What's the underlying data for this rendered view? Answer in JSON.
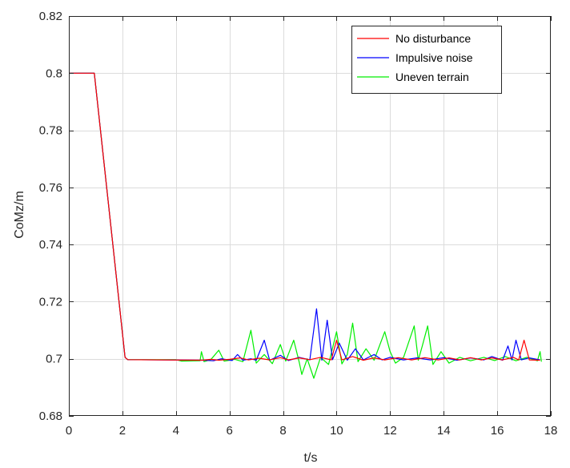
{
  "chart_data": {
    "type": "line",
    "title": "",
    "xlabel": "t/s",
    "ylabel": "CoMz/m",
    "xlim": [
      0,
      18
    ],
    "ylim": [
      0.68,
      0.82
    ],
    "xticks": [
      0,
      2,
      4,
      6,
      8,
      10,
      12,
      14,
      16,
      18
    ],
    "xtick_labels": [
      "0",
      "2",
      "4",
      "6",
      "8",
      "10",
      "12",
      "14",
      "16",
      "18"
    ],
    "yticks": [
      0.68,
      0.7,
      0.72,
      0.74,
      0.76,
      0.78,
      0.8,
      0.82
    ],
    "ytick_labels": [
      "0.68",
      "0.7",
      "0.72",
      "0.74",
      "0.76",
      "0.78",
      "0.8",
      "0.82"
    ],
    "grid": true,
    "legend_position": "top-right",
    "series": [
      {
        "name": "No disturbance",
        "color": "#ff0000",
        "points": [
          [
            0,
            0.8
          ],
          [
            0.95,
            0.8
          ],
          [
            2.1,
            0.7005
          ],
          [
            2.2,
            0.6997
          ],
          [
            5.0,
            0.6995
          ],
          [
            5.3,
            0.6998
          ],
          [
            5.6,
            0.6995
          ],
          [
            6.0,
            0.6998
          ],
          [
            6.4,
            0.7003
          ],
          [
            6.7,
            0.6996
          ],
          [
            7.1,
            0.7002
          ],
          [
            7.5,
            0.6996
          ],
          [
            7.9,
            0.7004
          ],
          [
            8.2,
            0.6996
          ],
          [
            8.6,
            0.7003
          ],
          [
            9.0,
            0.6997
          ],
          [
            9.4,
            0.7005
          ],
          [
            9.8,
            0.6996
          ],
          [
            10.0,
            0.7065
          ],
          [
            10.2,
            0.6996
          ],
          [
            10.6,
            0.7008
          ],
          [
            11.0,
            0.6995
          ],
          [
            11.4,
            0.7003
          ],
          [
            11.8,
            0.6996
          ],
          [
            12.3,
            0.7004
          ],
          [
            12.8,
            0.6996
          ],
          [
            13.3,
            0.7004
          ],
          [
            13.8,
            0.6996
          ],
          [
            14.2,
            0.7003
          ],
          [
            14.6,
            0.6996
          ],
          [
            15.0,
            0.7004
          ],
          [
            15.4,
            0.6996
          ],
          [
            15.8,
            0.7003
          ],
          [
            16.2,
            0.6996
          ],
          [
            16.6,
            0.7005
          ],
          [
            16.8,
            0.6996
          ],
          [
            17.0,
            0.7065
          ],
          [
            17.2,
            0.6996
          ],
          [
            17.6,
            0.6995
          ]
        ]
      },
      {
        "name": "Impulsive noise",
        "color": "#0000ff",
        "points": [
          [
            0,
            0.8
          ],
          [
            0.95,
            0.8
          ],
          [
            2.1,
            0.7005
          ],
          [
            2.2,
            0.6997
          ],
          [
            5.0,
            0.6995
          ],
          [
            5.4,
            0.6993
          ],
          [
            5.7,
            0.7
          ],
          [
            6.1,
            0.6994
          ],
          [
            6.3,
            0.7015
          ],
          [
            6.5,
            0.6995
          ],
          [
            6.8,
            0.7
          ],
          [
            7.0,
            0.6995
          ],
          [
            7.3,
            0.7065
          ],
          [
            7.5,
            0.6995
          ],
          [
            7.9,
            0.7012
          ],
          [
            8.2,
            0.6994
          ],
          [
            8.6,
            0.7005
          ],
          [
            9.0,
            0.6996
          ],
          [
            9.25,
            0.7175
          ],
          [
            9.45,
            0.6995
          ],
          [
            9.65,
            0.7135
          ],
          [
            9.85,
            0.6997
          ],
          [
            10.1,
            0.7055
          ],
          [
            10.4,
            0.6995
          ],
          [
            10.7,
            0.7035
          ],
          [
            11.0,
            0.6996
          ],
          [
            11.4,
            0.7015
          ],
          [
            11.7,
            0.6996
          ],
          [
            12.0,
            0.7005
          ],
          [
            12.5,
            0.6996
          ],
          [
            13.0,
            0.7003
          ],
          [
            13.5,
            0.6996
          ],
          [
            14.0,
            0.7004
          ],
          [
            14.5,
            0.6995
          ],
          [
            15.0,
            0.7003
          ],
          [
            15.5,
            0.6996
          ],
          [
            15.8,
            0.7008
          ],
          [
            16.2,
            0.6995
          ],
          [
            16.4,
            0.7045
          ],
          [
            16.55,
            0.6996
          ],
          [
            16.7,
            0.7065
          ],
          [
            16.9,
            0.6996
          ],
          [
            17.2,
            0.7003
          ],
          [
            17.6,
            0.6996
          ]
        ]
      },
      {
        "name": "Uneven terrain",
        "color": "#00ee00",
        "points": [
          [
            0,
            0.8
          ],
          [
            0.95,
            0.8
          ],
          [
            2.1,
            0.7005
          ],
          [
            2.2,
            0.6997
          ],
          [
            4.0,
            0.6997
          ],
          [
            4.2,
            0.6992
          ],
          [
            4.9,
            0.6993
          ],
          [
            4.95,
            0.7025
          ],
          [
            5.05,
            0.699
          ],
          [
            5.3,
            0.6997
          ],
          [
            5.6,
            0.703
          ],
          [
            5.8,
            0.6992
          ],
          [
            6.2,
            0.6998
          ],
          [
            6.5,
            0.699
          ],
          [
            6.8,
            0.71
          ],
          [
            7.0,
            0.6985
          ],
          [
            7.3,
            0.7015
          ],
          [
            7.6,
            0.6983
          ],
          [
            7.9,
            0.705
          ],
          [
            8.1,
            0.6992
          ],
          [
            8.4,
            0.7065
          ],
          [
            8.6,
            0.699
          ],
          [
            8.7,
            0.6945
          ],
          [
            8.9,
            0.7
          ],
          [
            9.15,
            0.6932
          ],
          [
            9.4,
            0.7005
          ],
          [
            9.7,
            0.698
          ],
          [
            10.0,
            0.7095
          ],
          [
            10.2,
            0.6982
          ],
          [
            10.4,
            0.7015
          ],
          [
            10.6,
            0.7125
          ],
          [
            10.8,
            0.699
          ],
          [
            11.1,
            0.7035
          ],
          [
            11.4,
            0.6995
          ],
          [
            11.8,
            0.7095
          ],
          [
            12.0,
            0.7025
          ],
          [
            12.2,
            0.6985
          ],
          [
            12.5,
            0.7005
          ],
          [
            12.9,
            0.7115
          ],
          [
            13.05,
            0.6995
          ],
          [
            13.2,
            0.7045
          ],
          [
            13.4,
            0.7115
          ],
          [
            13.6,
            0.698
          ],
          [
            13.9,
            0.7025
          ],
          [
            14.2,
            0.6985
          ],
          [
            14.6,
            0.7005
          ],
          [
            15.0,
            0.6993
          ],
          [
            15.5,
            0.7005
          ],
          [
            15.9,
            0.6994
          ],
          [
            16.3,
            0.7008
          ],
          [
            16.7,
            0.6993
          ],
          [
            17.1,
            0.7005
          ],
          [
            17.5,
            0.6993
          ],
          [
            17.6,
            0.7025
          ],
          [
            17.65,
            0.699
          ]
        ]
      }
    ]
  }
}
